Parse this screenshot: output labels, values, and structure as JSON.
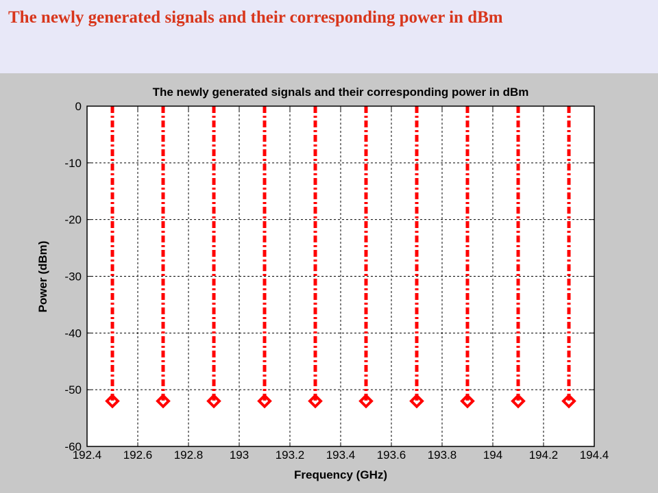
{
  "slide": {
    "title": "The newly generated signals and their corresponding power in dBm"
  },
  "chart_data": {
    "type": "scatter",
    "title": "The newly generated signals and their corresponding power in dBm",
    "xlabel": "Frequency (GHz)",
    "ylabel": "Power (dBm)",
    "xlim": [
      192.4,
      194.4
    ],
    "ylim": [
      -60,
      0
    ],
    "xticks": [
      192.4,
      192.6,
      192.8,
      193,
      193.2,
      193.4,
      193.6,
      193.8,
      194,
      194.2,
      194.4
    ],
    "xtick_labels": [
      "192.4",
      "192.6",
      "192.8",
      "193",
      "193.2",
      "193.4",
      "193.6",
      "193.8",
      "194",
      "194.2",
      "194.4"
    ],
    "yticks": [
      0,
      -10,
      -20,
      -30,
      -40,
      -50,
      -60
    ],
    "ytick_labels": [
      "0",
      "-10",
      "-20",
      "-30",
      "-40",
      "-50",
      "-60"
    ],
    "grid": true,
    "series": [
      {
        "color": "#ff0000",
        "line_style": "dash-dot stems",
        "marker": "diamond",
        "x": [
          192.5,
          192.7,
          192.9,
          193.1,
          193.3,
          193.5,
          193.7,
          193.9,
          194.1,
          194.3
        ],
        "y": [
          -52,
          -52,
          -52,
          -52,
          -52,
          -52,
          -52,
          -52,
          -52,
          -52
        ]
      }
    ]
  }
}
